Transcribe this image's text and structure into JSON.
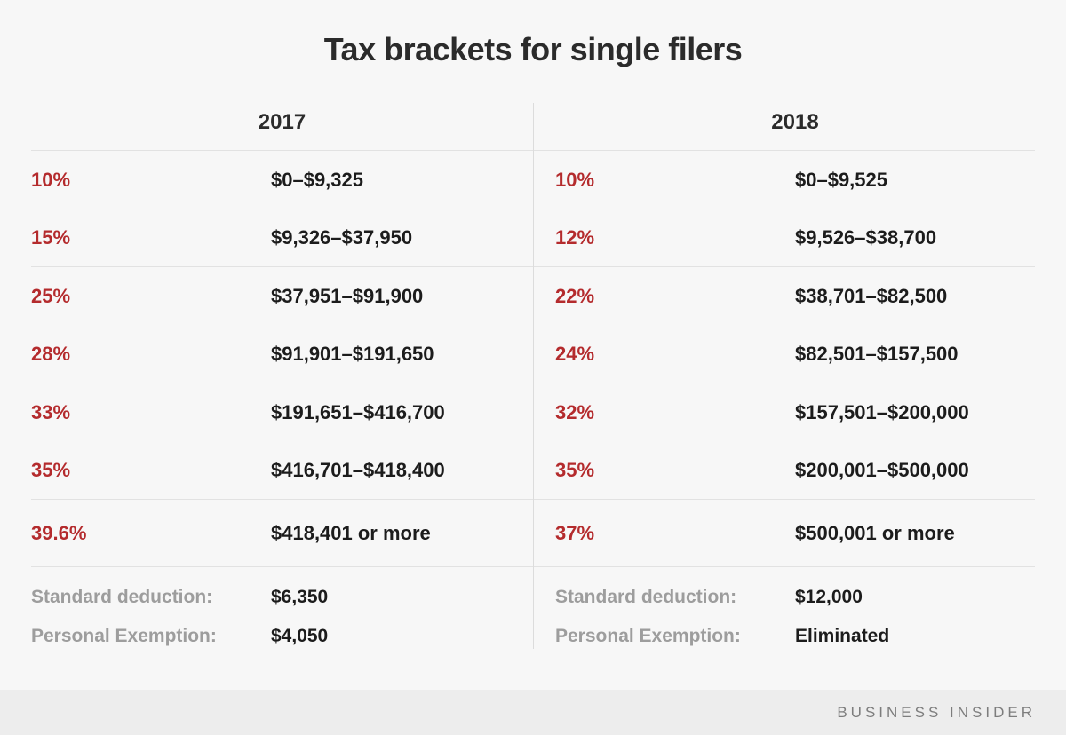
{
  "title": "Tax brackets for single filers",
  "chart_data": {
    "type": "table",
    "title": "Tax brackets for single filers",
    "columns": [
      {
        "year": "2017",
        "brackets": [
          {
            "rate": "10%",
            "range": "$0–$9,325"
          },
          {
            "rate": "15%",
            "range": "$9,326–$37,950"
          },
          {
            "rate": "25%",
            "range": "$37,951–$91,900"
          },
          {
            "rate": "28%",
            "range": "$91,901–$191,650"
          },
          {
            "rate": "33%",
            "range": "$191,651–$416,700"
          },
          {
            "rate": "35%",
            "range": "$416,701–$418,400"
          },
          {
            "rate": "39.6%",
            "range": "$418,401 or more"
          }
        ],
        "deductions": [
          {
            "label": "Standard deduction:",
            "value": "$6,350"
          },
          {
            "label": "Personal Exemption:",
            "value": "$4,050"
          }
        ]
      },
      {
        "year": "2018",
        "brackets": [
          {
            "rate": "10%",
            "range": "$0–$9,525"
          },
          {
            "rate": "12%",
            "range": "$9,526–$38,700"
          },
          {
            "rate": "22%",
            "range": "$38,701–$82,500"
          },
          {
            "rate": "24%",
            "range": "$82,501–$157,500"
          },
          {
            "rate": "32%",
            "range": "$157,501–$200,000"
          },
          {
            "rate": "35%",
            "range": "$200,001–$500,000"
          },
          {
            "rate": "37%",
            "range": "$500,001 or more"
          }
        ],
        "deductions": [
          {
            "label": "Standard deduction:",
            "value": "$12,000"
          },
          {
            "label": "Personal Exemption:",
            "value": "Eliminated"
          }
        ]
      }
    ]
  },
  "footer": {
    "brand": "BUSINESS INSIDER"
  },
  "colors": {
    "accent_red": "#b42b2d",
    "text_dark": "#1c1c1c",
    "label_gray": "#9d9d9d",
    "line": "#e2e2e2",
    "background": "#f7f7f7",
    "footer_band": "#ededed"
  }
}
